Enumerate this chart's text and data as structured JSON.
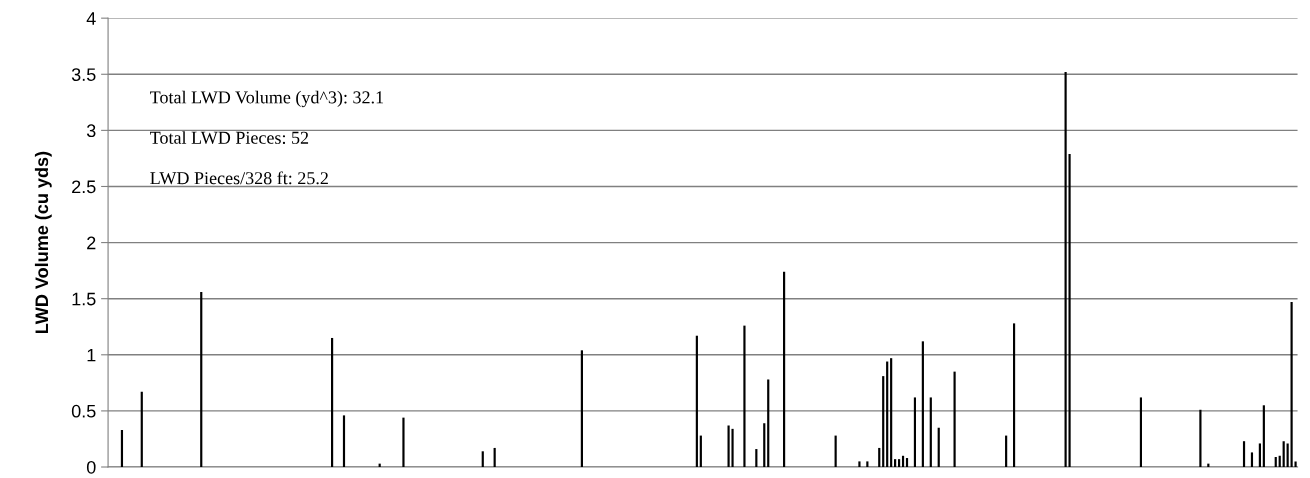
{
  "chart_data": {
    "type": "bar",
    "ylabel": "LWD Volume (cu yds)",
    "annotations": [
      "Total LWD Volume (yd^3): 32.1",
      "Total LWD Pieces: 52",
      "LWD Pieces/328 ft: 25.2"
    ],
    "categories": [
      null,
      null,
      null,
      null,
      null,
      null,
      null,
      null,
      null,
      null,
      null,
      null,
      null,
      null,
      null,
      null,
      null,
      null,
      null,
      null,
      null,
      null,
      null,
      null,
      null,
      null,
      null,
      null,
      null,
      null,
      null,
      null,
      null,
      null,
      null,
      null,
      null,
      null,
      null,
      null,
      null,
      null,
      null,
      null,
      null,
      null,
      null,
      null,
      null,
      null,
      null,
      null,
      null,
      null,
      null,
      null,
      null,
      null,
      null,
      null,
      null,
      null,
      null,
      null,
      null,
      null,
      null,
      null,
      null,
      null,
      null,
      null,
      null,
      null,
      null,
      null,
      null,
      null,
      null,
      null,
      null,
      null,
      null,
      null,
      null,
      null,
      null,
      null,
      null,
      null,
      null,
      null,
      null,
      null,
      null,
      null,
      null,
      null,
      null,
      null,
      null,
      null,
      null,
      null,
      null,
      null,
      null,
      null,
      null,
      null,
      null,
      null,
      null,
      null,
      null,
      null,
      null,
      null,
      null,
      null,
      null,
      null,
      null,
      null,
      null,
      null,
      null,
      null,
      null,
      null,
      null,
      null,
      null,
      null,
      null,
      null,
      null,
      null,
      null,
      null,
      null,
      null,
      null,
      null,
      null,
      null,
      null,
      null,
      null,
      null,
      null,
      null,
      null,
      null,
      null,
      null,
      null,
      null,
      null,
      null,
      null,
      null,
      null,
      null,
      null,
      null,
      null,
      null,
      null,
      null,
      null,
      null,
      null,
      null,
      null,
      null,
      null,
      null,
      null,
      null,
      null,
      null,
      null,
      null,
      null,
      null,
      null,
      null,
      null,
      null,
      null,
      null,
      null,
      null,
      null,
      null,
      null,
      null,
      null,
      null,
      null,
      null,
      null,
      null,
      null,
      null,
      null,
      null,
      null,
      null,
      null,
      null,
      null,
      null,
      null,
      null,
      null,
      null,
      null,
      null,
      null,
      null,
      null,
      null,
      null,
      null,
      null,
      null,
      null,
      null,
      null,
      null,
      null,
      null,
      null,
      null,
      null,
      null,
      null,
      null,
      null,
      null,
      null,
      null,
      null,
      null,
      null,
      null,
      null,
      null,
      null,
      null,
      null,
      null,
      null,
      null,
      null,
      null,
      null,
      null,
      null,
      null,
      null,
      null,
      null,
      null,
      null,
      null,
      null,
      null,
      null,
      null,
      null,
      null,
      null,
      null,
      null,
      null,
      null,
      null,
      null,
      null,
      null,
      null,
      null,
      null,
      null,
      null,
      null,
      null,
      null,
      null,
      null,
      null,
      null,
      null,
      null,
      null,
      null,
      null
    ],
    "values": [
      null,
      null,
      null,
      0.33,
      null,
      null,
      null,
      null,
      0.67,
      null,
      null,
      null,
      null,
      null,
      null,
      null,
      null,
      null,
      null,
      null,
      null,
      null,
      null,
      1.56,
      null,
      null,
      null,
      null,
      null,
      null,
      null,
      null,
      null,
      null,
      null,
      null,
      null,
      null,
      null,
      null,
      null,
      null,
      null,
      null,
      null,
      null,
      null,
      null,
      null,
      null,
      null,
      null,
      null,
      null,
      null,
      null,
      1.15,
      null,
      null,
      0.46,
      null,
      null,
      null,
      null,
      null,
      null,
      null,
      null,
      0.03,
      null,
      null,
      null,
      null,
      null,
      0.44,
      null,
      null,
      null,
      null,
      null,
      null,
      null,
      null,
      null,
      null,
      null,
      null,
      null,
      null,
      null,
      null,
      null,
      null,
      null,
      0.14,
      null,
      null,
      0.17,
      null,
      null,
      null,
      null,
      null,
      null,
      null,
      null,
      null,
      null,
      null,
      null,
      null,
      null,
      null,
      null,
      null,
      null,
      null,
      null,
      null,
      1.04,
      null,
      null,
      null,
      null,
      null,
      null,
      null,
      null,
      null,
      null,
      null,
      null,
      null,
      null,
      null,
      null,
      null,
      null,
      null,
      null,
      null,
      null,
      null,
      null,
      null,
      null,
      null,
      null,
      1.17,
      0.28,
      null,
      null,
      null,
      null,
      null,
      null,
      0.37,
      0.34,
      null,
      null,
      1.26,
      null,
      null,
      0.16,
      null,
      0.39,
      0.78,
      null,
      null,
      null,
      1.74,
      null,
      null,
      null,
      null,
      null,
      null,
      null,
      null,
      null,
      null,
      null,
      null,
      0.28,
      null,
      null,
      null,
      null,
      null,
      0.05,
      null,
      0.05,
      null,
      null,
      0.17,
      0.81,
      0.94,
      0.97,
      0.07,
      0.07,
      0.1,
      0.08,
      null,
      0.62,
      null,
      1.12,
      null,
      0.62,
      null,
      0.35,
      null,
      null,
      null,
      0.85,
      null,
      null,
      null,
      null,
      null,
      null,
      null,
      null,
      null,
      null,
      null,
      null,
      0.28,
      null,
      1.28,
      null,
      null,
      null,
      null,
      null,
      null,
      null,
      null,
      null,
      null,
      null,
      null,
      3.52,
      2.79,
      null,
      null,
      null,
      null,
      null,
      null,
      null,
      null,
      null,
      null,
      null,
      null,
      null,
      null,
      null,
      null,
      null,
      0.62,
      null,
      null,
      null,
      null,
      null,
      null,
      null,
      null,
      null,
      null,
      null,
      null,
      null,
      null,
      0.51,
      null,
      0.03,
      null,
      null,
      null,
      null,
      null,
      null,
      null,
      null,
      0.23,
      null,
      0.13,
      null,
      0.21,
      0.55,
      null,
      null,
      0.09,
      0.1,
      0.23,
      0.21,
      1.47,
      0.05
    ],
    "color": "#000000",
    "ylim": [
      0,
      4
    ],
    "yticks": [
      0,
      0.5,
      1,
      1.5,
      2,
      2.5,
      3,
      3.5,
      4
    ],
    "grid": "y",
    "tick_labels": "y"
  }
}
